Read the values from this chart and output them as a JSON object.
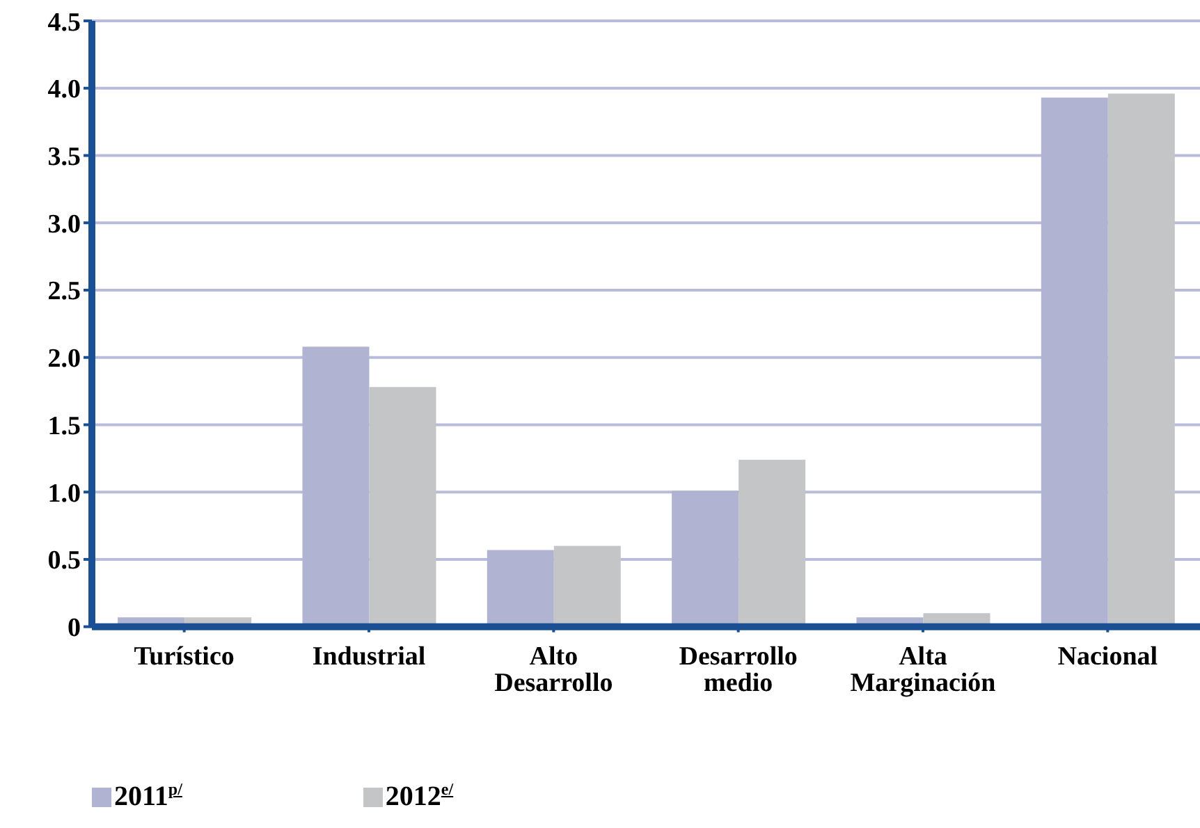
{
  "chart_data": {
    "type": "bar",
    "categories": [
      "Turístico",
      "Industrial",
      "Alto Desarrollo",
      "Desarrollo medio",
      "Alta Marginación",
      "Nacional"
    ],
    "series": [
      {
        "name": "2011$^{p/}$",
        "color": "#b0b4d2",
        "values": [
          0.07,
          2.08,
          0.57,
          1.01,
          0.07,
          3.93
        ]
      },
      {
        "name": "2012$^{e/}$",
        "color": "#c4c5c7",
        "values": [
          0.07,
          1.78,
          0.6,
          1.24,
          0.1,
          3.96
        ]
      }
    ],
    "ylim": [
      0,
      4.5
    ],
    "yticks": [
      0,
      0.5,
      {
        "value": 1,
        "label": "1.0"
      },
      1.5,
      {
        "value": 2,
        "label": "2.0"
      },
      2.5,
      {
        "value": 3,
        "label": "3.0"
      },
      3.5,
      {
        "value": 4,
        "label": "4.0"
      },
      4.5
    ],
    "grid": "y",
    "legend": "bottom left"
  }
}
